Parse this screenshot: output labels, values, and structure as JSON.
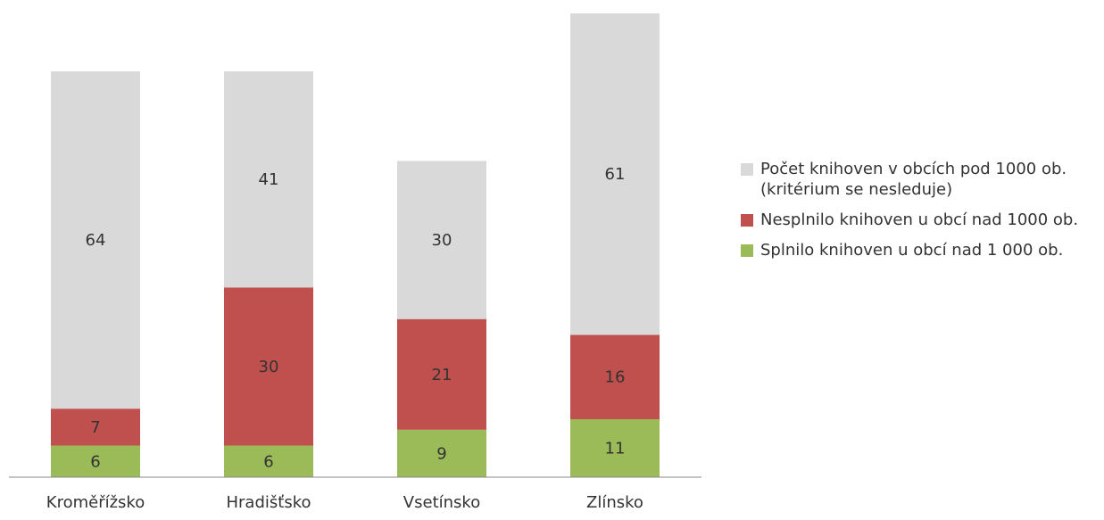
{
  "chart_data": {
    "type": "stacked_bar",
    "categories": [
      "Kroměřížsko",
      "Hradišťsko",
      "Vsetínsko",
      "Zlínsko"
    ],
    "series": [
      {
        "name": "Splnilo knihoven u obcí nad 1 000 ob.",
        "color": "#9bbb59",
        "values": [
          6,
          6,
          9,
          11
        ]
      },
      {
        "name": "Nesplnilo knihoven u obcí nad 1000 ob.",
        "color": "#c0504d",
        "values": [
          7,
          30,
          21,
          16
        ]
      },
      {
        "name": "Počet knihoven v obcích pod 1000 ob. (kritérium se nesleduje)",
        "color": "#d9d9d9",
        "values": [
          64,
          41,
          30,
          61
        ]
      }
    ],
    "legend": "right"
  }
}
